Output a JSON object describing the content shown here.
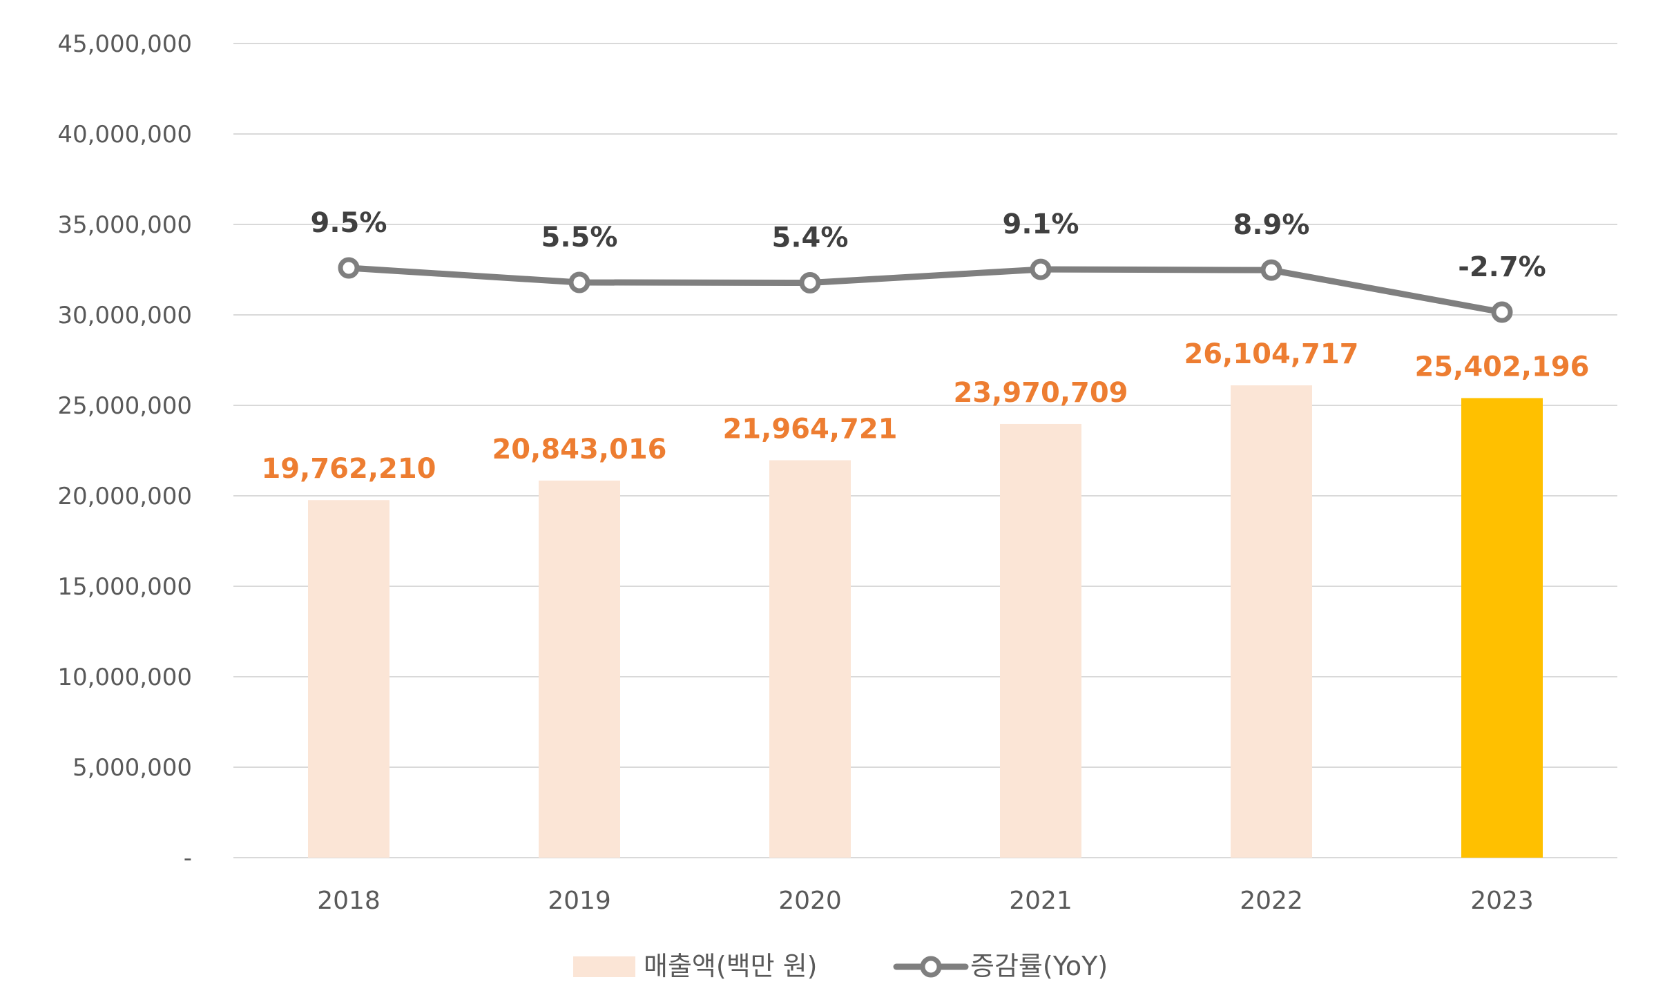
{
  "chart_data": {
    "type": "bar",
    "categories": [
      "2018",
      "2019",
      "2020",
      "2021",
      "2022",
      "2023"
    ],
    "ylim": [
      0,
      45000000
    ],
    "y_ticks": [
      {
        "value": 0,
        "label": "-"
      },
      {
        "value": 5000000,
        "label": "5,000,000"
      },
      {
        "value": 10000000,
        "label": "10,000,000"
      },
      {
        "value": 15000000,
        "label": "15,000,000"
      },
      {
        "value": 20000000,
        "label": "20,000,000"
      },
      {
        "value": 25000000,
        "label": "25,000,000"
      },
      {
        "value": 30000000,
        "label": "30,000,000"
      },
      {
        "value": 35000000,
        "label": "35,000,000"
      },
      {
        "value": 40000000,
        "label": "40,000,000"
      },
      {
        "value": 45000000,
        "label": "45,000,000"
      }
    ],
    "grid": true,
    "legend_position": "bottom",
    "series": [
      {
        "name": "매출액(백만 원)",
        "type": "bar",
        "values": [
          19762210,
          20843016,
          21964721,
          23970709,
          26104717,
          25402196
        ],
        "labels": [
          "19,762,210",
          "20,843,016",
          "21,964,721",
          "23,970,709",
          "26,104,717",
          "25,402,196"
        ],
        "color": "#FBE5D6",
        "highlight_color": "#FFC000",
        "highlight_index": 5
      },
      {
        "name": "증감률(YoY)",
        "type": "line",
        "axis": "secondary",
        "values": [
          9.5,
          5.5,
          5.4,
          9.1,
          8.9,
          -2.7
        ],
        "labels": [
          "9.5%",
          "5.5%",
          "5.4%",
          "9.1%",
          "8.9%",
          "-2.7%"
        ],
        "color": "#7F7F7F"
      }
    ],
    "label_color": "#ED7D31",
    "gridline_color": "#D9D9D9"
  }
}
